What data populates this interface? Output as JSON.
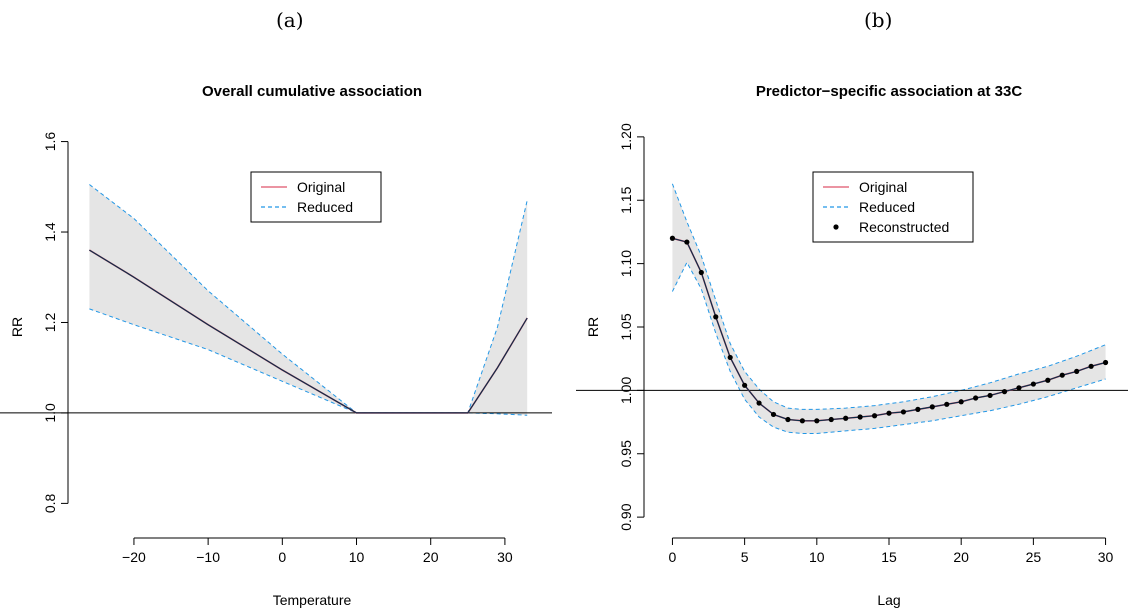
{
  "panel_labels": {
    "a": "(a)",
    "b": "(b)"
  },
  "colors": {
    "original": "#DF536B",
    "reduced": "#2297E6",
    "band": "#e5e5e5",
    "reconstructed": "#000000"
  },
  "chart_data": [
    {
      "type": "line",
      "title": "Overall cumulative association",
      "xlabel": "Temperature",
      "ylabel": "RR",
      "xlim": [
        -27,
        35
      ],
      "ylim": [
        0.75,
        1.63
      ],
      "xticks": [
        -20,
        -10,
        0,
        10,
        20,
        30
      ],
      "yticks": [
        0.8,
        1.0,
        1.2,
        1.4,
        1.6
      ],
      "reference_line": 1.0,
      "legend": {
        "position": "top-center",
        "entries": [
          "Original",
          "Reduced"
        ]
      },
      "series": [
        {
          "name": "Original",
          "x": [
            -26,
            -20,
            -10,
            0,
            10,
            25,
            29,
            33
          ],
          "y": [
            1.36,
            1.3,
            1.195,
            1.095,
            1.0,
            1.0,
            1.1,
            1.21
          ]
        },
        {
          "name": "Reduced",
          "x": [
            -26,
            -20,
            -10,
            0,
            10,
            25,
            29,
            33
          ],
          "y": [
            1.36,
            1.3,
            1.195,
            1.095,
            1.0,
            1.0,
            1.1,
            1.21
          ]
        }
      ],
      "band": {
        "x": [
          -26,
          -20,
          -10,
          0,
          10,
          25,
          29,
          33
        ],
        "lower": [
          1.23,
          1.195,
          1.14,
          1.07,
          1.0,
          1.0,
          0.998,
          0.995
        ],
        "upper": [
          1.505,
          1.43,
          1.27,
          1.13,
          1.0,
          1.0,
          1.19,
          1.47
        ]
      }
    },
    {
      "type": "line",
      "title": "Predictor−specific association at 33C",
      "xlabel": "Lag",
      "ylabel": "RR",
      "xlim": [
        -1,
        31
      ],
      "ylim": [
        0.893,
        1.207
      ],
      "xticks": [
        0,
        5,
        10,
        15,
        20,
        25,
        30
      ],
      "yticks": [
        0.9,
        0.95,
        1.0,
        1.05,
        1.1,
        1.15,
        1.2
      ],
      "reference_line": 1.0,
      "legend": {
        "position": "top-center",
        "entries": [
          "Original",
          "Reduced",
          "Reconstructed"
        ]
      },
      "series": [
        {
          "name": "Original",
          "x": [
            0,
            1,
            2,
            3,
            4,
            5,
            6,
            7,
            8,
            9,
            10,
            11,
            12,
            13,
            14,
            15,
            16,
            17,
            18,
            19,
            20,
            21,
            22,
            23,
            24,
            25,
            26,
            27,
            28,
            29,
            30
          ],
          "y": [
            1.12,
            1.117,
            1.093,
            1.058,
            1.026,
            1.004,
            0.99,
            0.981,
            0.977,
            0.976,
            0.976,
            0.977,
            0.978,
            0.979,
            0.98,
            0.982,
            0.983,
            0.985,
            0.987,
            0.989,
            0.991,
            0.994,
            0.996,
            0.999,
            1.002,
            1.005,
            1.008,
            1.012,
            1.015,
            1.019,
            1.022
          ]
        },
        {
          "name": "Reduced",
          "x": [
            0,
            1,
            2,
            3,
            4,
            5,
            6,
            7,
            8,
            9,
            10,
            11,
            12,
            13,
            14,
            15,
            16,
            17,
            18,
            19,
            20,
            21,
            22,
            23,
            24,
            25,
            26,
            27,
            28,
            29,
            30
          ],
          "y": [
            1.12,
            1.117,
            1.093,
            1.058,
            1.026,
            1.004,
            0.99,
            0.981,
            0.977,
            0.976,
            0.976,
            0.977,
            0.978,
            0.979,
            0.98,
            0.982,
            0.983,
            0.985,
            0.987,
            0.989,
            0.991,
            0.994,
            0.996,
            0.999,
            1.002,
            1.005,
            1.008,
            1.012,
            1.015,
            1.019,
            1.022
          ]
        },
        {
          "name": "Reconstructed",
          "x": [
            0,
            1,
            2,
            3,
            4,
            5,
            6,
            7,
            8,
            9,
            10,
            11,
            12,
            13,
            14,
            15,
            16,
            17,
            18,
            19,
            20,
            21,
            22,
            23,
            24,
            25,
            26,
            27,
            28,
            29,
            30
          ],
          "y": [
            1.12,
            1.117,
            1.093,
            1.058,
            1.026,
            1.004,
            0.99,
            0.981,
            0.977,
            0.976,
            0.976,
            0.977,
            0.978,
            0.979,
            0.98,
            0.982,
            0.983,
            0.985,
            0.987,
            0.989,
            0.991,
            0.994,
            0.996,
            0.999,
            1.002,
            1.005,
            1.008,
            1.012,
            1.015,
            1.019,
            1.022
          ]
        }
      ],
      "band": {
        "x": [
          0,
          1,
          2,
          3,
          4,
          5,
          6,
          7,
          8,
          9,
          10,
          12,
          14,
          16,
          18,
          20,
          22,
          24,
          26,
          28,
          30
        ],
        "lower": [
          1.078,
          1.101,
          1.08,
          1.045,
          1.015,
          0.993,
          0.979,
          0.971,
          0.967,
          0.966,
          0.966,
          0.968,
          0.97,
          0.973,
          0.976,
          0.98,
          0.984,
          0.989,
          0.995,
          1.002,
          1.009
        ],
        "upper": [
          1.163,
          1.133,
          1.106,
          1.071,
          1.037,
          1.015,
          1.001,
          0.991,
          0.986,
          0.985,
          0.985,
          0.986,
          0.988,
          0.991,
          0.995,
          1.0,
          1.006,
          1.013,
          1.019,
          1.027,
          1.036
        ]
      }
    }
  ]
}
